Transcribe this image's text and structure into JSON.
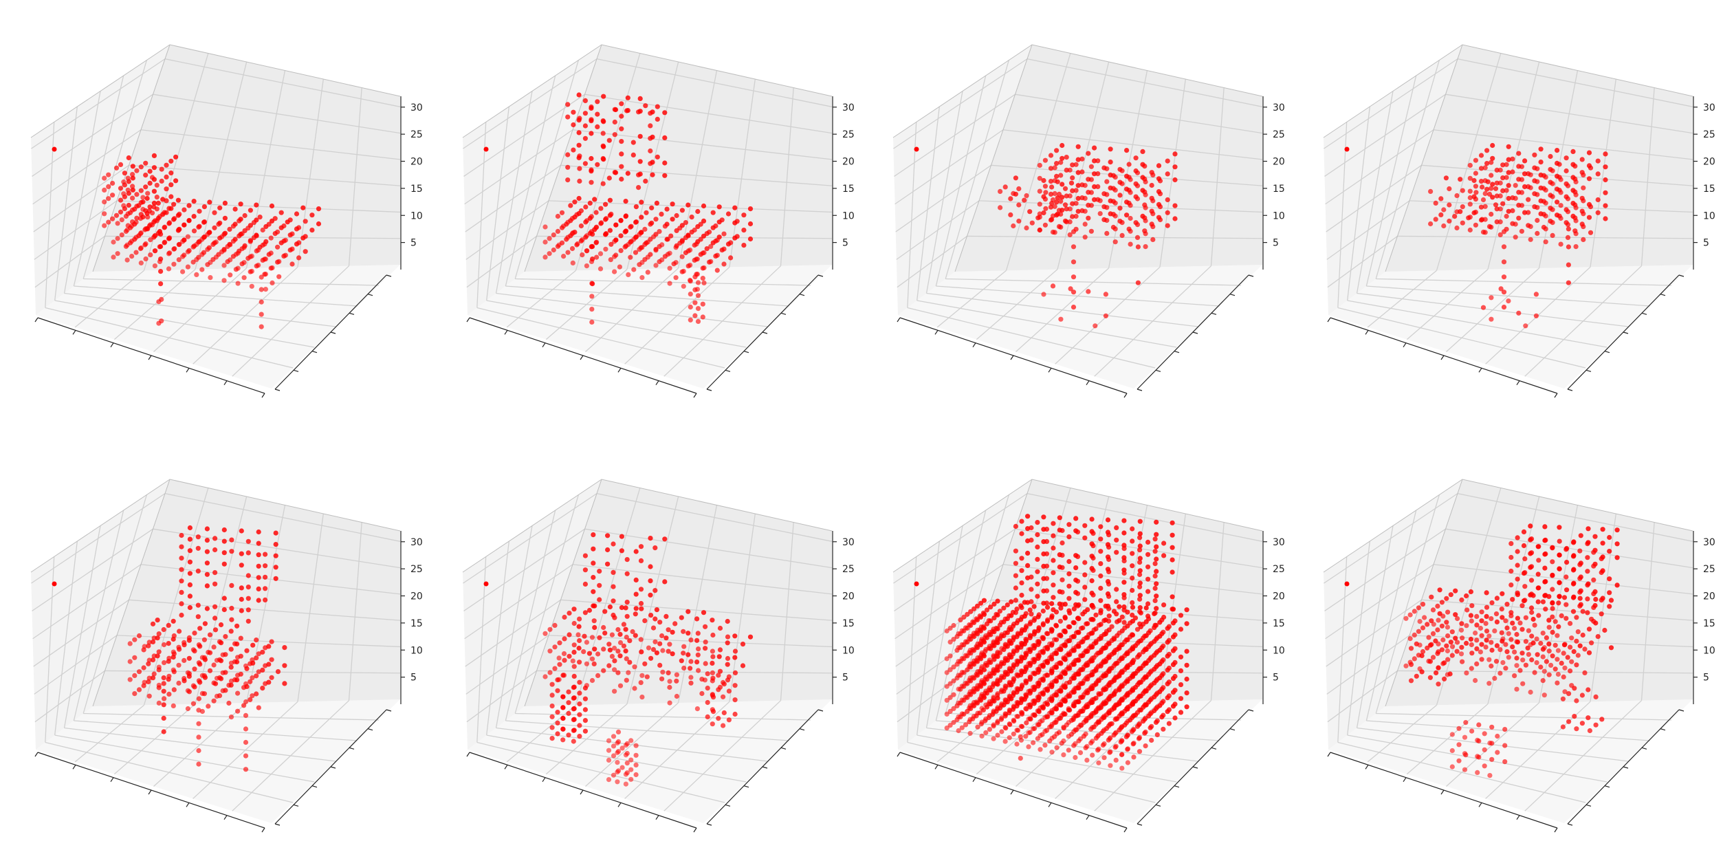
{
  "figure": {
    "rows": 2,
    "cols": 4
  },
  "style": {
    "point_color": "#ff0000",
    "pane_left": "#f3f3f3",
    "pane_back": "#ececec",
    "pane_floor": "#f7f7f7",
    "grid_color": "#d0d0d0",
    "axis_color": "#222222"
  },
  "chart_data": [
    {
      "type": "scatter",
      "projection": "3d",
      "shape": "voxel chair (wide seat with low back)",
      "z_ticks": [
        "5",
        "10",
        "15",
        "20",
        "25",
        "30"
      ],
      "zlim": [
        0,
        32
      ],
      "x_ticks_labeled": false,
      "y_ticks_labeled": false,
      "grid": true,
      "legend": "top-left marker only"
    },
    {
      "type": "scatter",
      "projection": "3d",
      "shape": "voxel chair (bench with curved back frame)",
      "z_ticks": [
        "5",
        "10",
        "15",
        "20",
        "25",
        "30"
      ],
      "zlim": [
        0,
        32
      ],
      "x_ticks_labeled": false,
      "y_ticks_labeled": false,
      "grid": true,
      "legend": "top-left marker only"
    },
    {
      "type": "scatter",
      "projection": "3d",
      "shape": "voxel chair (small side view)",
      "z_ticks": [
        "5",
        "10",
        "15",
        "20",
        "25",
        "30"
      ],
      "zlim": [
        0,
        32
      ],
      "x_ticks_labeled": false,
      "y_ticks_labeled": false,
      "grid": true,
      "legend": "top-left marker only"
    },
    {
      "type": "scatter",
      "projection": "3d",
      "shape": "voxel chair (small side view)",
      "z_ticks": [
        "5",
        "10",
        "15",
        "20",
        "25",
        "30"
      ],
      "zlim": [
        0,
        32
      ],
      "x_ticks_labeled": false,
      "y_ticks_labeled": false,
      "grid": true,
      "legend": "top-left marker only"
    },
    {
      "type": "scatter",
      "projection": "3d",
      "shape": "voxel chair (upright with four legs)",
      "z_ticks": [
        "5",
        "10",
        "15",
        "20",
        "25",
        "30"
      ],
      "zlim": [
        0,
        32
      ],
      "x_ticks_labeled": false,
      "y_ticks_labeled": false,
      "grid": true,
      "legend": "top-left marker only"
    },
    {
      "type": "scatter",
      "projection": "3d",
      "shape": "voxel chair (frame with separate legs)",
      "z_ticks": [
        "5",
        "10",
        "15",
        "20",
        "25",
        "30"
      ],
      "zlim": [
        0,
        32
      ],
      "x_ticks_labeled": false,
      "y_ticks_labeled": false,
      "grid": true,
      "legend": "top-left marker only"
    },
    {
      "type": "scatter",
      "projection": "3d",
      "shape": "voxel armchair (solid, dense)",
      "z_ticks": [
        "5",
        "10",
        "15",
        "20",
        "25",
        "30"
      ],
      "zlim": [
        0,
        32
      ],
      "x_ticks_labeled": false,
      "y_ticks_labeled": false,
      "grid": true,
      "legend": "top-left marker only"
    },
    {
      "type": "scatter",
      "projection": "3d",
      "shape": "voxel chair (reclined with detached legs)",
      "z_ticks": [
        "5",
        "10",
        "15",
        "20",
        "25",
        "30"
      ],
      "zlim": [
        0,
        32
      ],
      "x_ticks_labeled": false,
      "y_ticks_labeled": false,
      "grid": true,
      "legend": "top-left marker only"
    }
  ]
}
